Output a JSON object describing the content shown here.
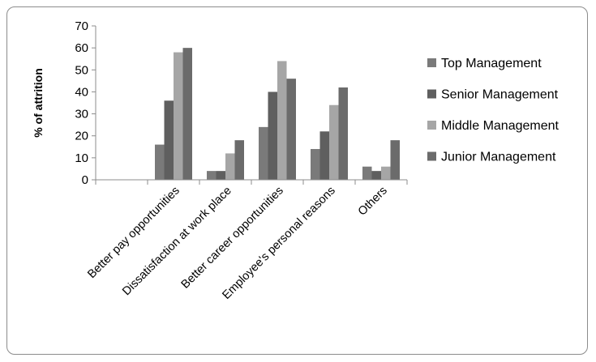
{
  "chart_data": {
    "type": "bar",
    "title": "",
    "xlabel": "",
    "ylabel": "% of attrition",
    "ylim": [
      0,
      70
    ],
    "yticks": [
      0,
      10,
      20,
      30,
      40,
      50,
      60,
      70
    ],
    "categories": [
      "",
      "Better pay opportunities",
      "Dissatisfaction at work place",
      "Better career opportunities",
      "Employee's personal reasons",
      "Others"
    ],
    "series": [
      {
        "name": "Top Management",
        "color": "#7a7a7a",
        "values": [
          0,
          16,
          4,
          24,
          14,
          6
        ]
      },
      {
        "name": "Senior Management",
        "color": "#5f5f5f",
        "values": [
          0,
          36,
          4,
          40,
          22,
          4
        ]
      },
      {
        "name": "Middle Management",
        "color": "#a6a6a6",
        "values": [
          0,
          58,
          12,
          54,
          34,
          6
        ]
      },
      {
        "name": "Junior Management",
        "color": "#6b6b6b",
        "values": [
          0,
          60,
          18,
          46,
          42,
          18
        ]
      }
    ],
    "grid": false,
    "legend_position": "right"
  }
}
